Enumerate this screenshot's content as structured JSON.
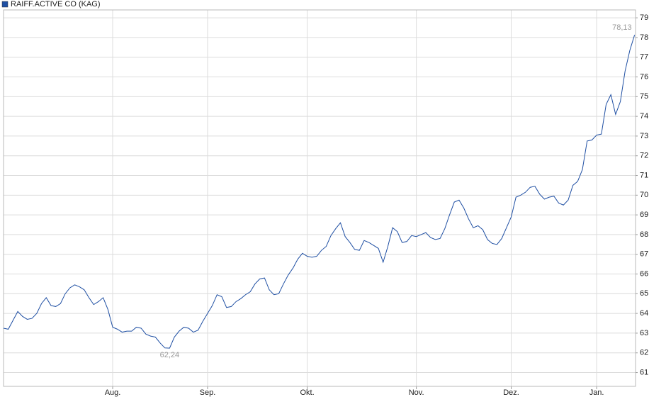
{
  "chart_data": {
    "type": "line",
    "legend": "top-left",
    "grid": true,
    "x": [
      0,
      1,
      2,
      3,
      4,
      5,
      6,
      7,
      8,
      9,
      10,
      11,
      12,
      13,
      14,
      15,
      16,
      17,
      18,
      19,
      20,
      21,
      22,
      23,
      24,
      25,
      26,
      27,
      28,
      29,
      30,
      31,
      32,
      33,
      34,
      35,
      36,
      37,
      38,
      39,
      40,
      41,
      42,
      43,
      44,
      45,
      46,
      47,
      48,
      49,
      50,
      51,
      52,
      53,
      54,
      55,
      56,
      57,
      58,
      59,
      60,
      61,
      62,
      63,
      64,
      65,
      66,
      67,
      68,
      69,
      70,
      71,
      72,
      73,
      74,
      75,
      76,
      77,
      78,
      79,
      80,
      81,
      82,
      83,
      84,
      85,
      86,
      87,
      88,
      89,
      90,
      91,
      92,
      93,
      94,
      95,
      96,
      97,
      98,
      99,
      100,
      101,
      102,
      103,
      104,
      105,
      106,
      107,
      108,
      109,
      110,
      111,
      112,
      113,
      114,
      115,
      116,
      117,
      118,
      119,
      120,
      121,
      122,
      123,
      124,
      125,
      126,
      127,
      128,
      129,
      130,
      131,
      132,
      133
    ],
    "series": [
      {
        "name": "RAIFF.ACTIVE CO (KAG)",
        "color": "#1f4fa3",
        "values": [
          63.25,
          63.2,
          63.65,
          64.1,
          63.85,
          63.7,
          63.75,
          64.0,
          64.5,
          64.8,
          64.4,
          64.35,
          64.5,
          65.0,
          65.3,
          65.45,
          65.35,
          65.2,
          64.8,
          64.45,
          64.6,
          64.8,
          64.2,
          63.3,
          63.2,
          63.05,
          63.1,
          63.1,
          63.3,
          63.25,
          62.95,
          62.85,
          62.8,
          62.5,
          62.25,
          62.24,
          62.8,
          63.1,
          63.3,
          63.25,
          63.05,
          63.15,
          63.6,
          64.0,
          64.4,
          64.95,
          64.85,
          64.3,
          64.35,
          64.6,
          64.75,
          64.95,
          65.1,
          65.5,
          65.75,
          65.8,
          65.2,
          64.95,
          65.0,
          65.5,
          65.95,
          66.3,
          66.75,
          67.05,
          66.9,
          66.85,
          66.9,
          67.2,
          67.4,
          67.95,
          68.3,
          68.6,
          67.9,
          67.6,
          67.25,
          67.2,
          67.7,
          67.6,
          67.45,
          67.3,
          66.6,
          67.4,
          68.35,
          68.15,
          67.6,
          67.65,
          67.95,
          67.9,
          68.0,
          68.1,
          67.85,
          67.75,
          67.8,
          68.3,
          69.0,
          69.65,
          69.75,
          69.35,
          68.8,
          68.35,
          68.45,
          68.25,
          67.75,
          67.55,
          67.5,
          67.8,
          68.35,
          68.9,
          69.9,
          70.0,
          70.15,
          70.4,
          70.45,
          70.05,
          69.8,
          69.9,
          69.95,
          69.6,
          69.5,
          69.75,
          70.5,
          70.7,
          71.3,
          72.75,
          72.8,
          73.05,
          73.1,
          74.6,
          75.1,
          74.1,
          74.75,
          76.3,
          77.35,
          78.13
        ]
      }
    ],
    "annotations": [
      {
        "label": "78,13",
        "x": 133,
        "y": 78.13
      },
      {
        "label": "62,24",
        "x": 35,
        "y": 62.24
      }
    ],
    "xlim": [
      0,
      133.2
    ],
    "xticks": [
      {
        "value": 23,
        "label": "Aug."
      },
      {
        "value": 43,
        "label": "Sep."
      },
      {
        "value": 64,
        "label": "Okt."
      },
      {
        "value": 87,
        "label": "Nov."
      },
      {
        "value": 107,
        "label": "Dez."
      },
      {
        "value": 125,
        "label": "Jan."
      }
    ],
    "ylim": [
      60.3,
      79.4
    ],
    "yticks": [
      61,
      62,
      63,
      64,
      65,
      66,
      67,
      68,
      69,
      70,
      71,
      72,
      73,
      74,
      75,
      76,
      77,
      78,
      79
    ]
  }
}
